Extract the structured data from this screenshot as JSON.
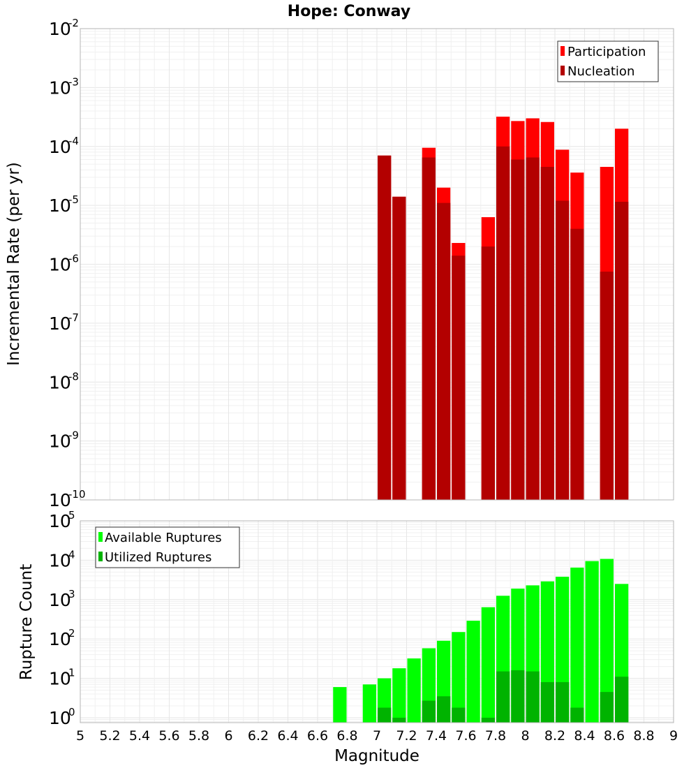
{
  "chart_data": [
    {
      "type": "bar",
      "title": "Hope: Conway",
      "ylabel": "Incremental Rate (per yr)",
      "xlabel": "",
      "yscale": "log",
      "ylim": [
        1e-10,
        0.01
      ],
      "xlim": [
        5,
        9
      ],
      "grid": true,
      "legend": "top-right",
      "y_ticks": [
        {
          "base": "10",
          "exp": "-2",
          "value": 0.01
        },
        {
          "base": "10",
          "exp": "-3",
          "value": 0.001
        },
        {
          "base": "10",
          "exp": "-4",
          "value": 0.0001
        },
        {
          "base": "10",
          "exp": "-5",
          "value": 1e-05
        },
        {
          "base": "10",
          "exp": "-6",
          "value": 1e-06
        },
        {
          "base": "10",
          "exp": "-7",
          "value": 1e-07
        },
        {
          "base": "10",
          "exp": "-8",
          "value": 1e-08
        },
        {
          "base": "10",
          "exp": "-9",
          "value": 1e-09
        },
        {
          "base": "10",
          "exp": "-10",
          "value": 1e-10
        }
      ],
      "series": [
        {
          "name": "Participation",
          "color": "#ff0000",
          "points": [
            {
              "x": 7.05,
              "y": 7e-05
            },
            {
              "x": 7.15,
              "y": 1.4e-05
            },
            {
              "x": 7.35,
              "y": 9.5e-05
            },
            {
              "x": 7.45,
              "y": 2e-05
            },
            {
              "x": 7.55,
              "y": 2.3e-06
            },
            {
              "x": 7.75,
              "y": 6.3e-06
            },
            {
              "x": 7.85,
              "y": 0.00032
            },
            {
              "x": 7.95,
              "y": 0.00027
            },
            {
              "x": 8.05,
              "y": 0.0003
            },
            {
              "x": 8.15,
              "y": 0.00026
            },
            {
              "x": 8.25,
              "y": 8.8e-05
            },
            {
              "x": 8.35,
              "y": 3.6e-05
            },
            {
              "x": 8.55,
              "y": 4.5e-05
            },
            {
              "x": 8.65,
              "y": 0.0002
            }
          ]
        },
        {
          "name": "Nucleation",
          "color": "#b30000",
          "points": [
            {
              "x": 7.05,
              "y": 7e-05
            },
            {
              "x": 7.15,
              "y": 1.4e-05
            },
            {
              "x": 7.35,
              "y": 6.5e-05
            },
            {
              "x": 7.45,
              "y": 1.1e-05
            },
            {
              "x": 7.55,
              "y": 1.4e-06
            },
            {
              "x": 7.75,
              "y": 2e-06
            },
            {
              "x": 7.85,
              "y": 0.0001
            },
            {
              "x": 7.95,
              "y": 6e-05
            },
            {
              "x": 8.05,
              "y": 6.5e-05
            },
            {
              "x": 8.15,
              "y": 4.5e-05
            },
            {
              "x": 8.25,
              "y": 1.2e-05
            },
            {
              "x": 8.35,
              "y": 4e-06
            },
            {
              "x": 8.55,
              "y": 7.5e-07
            },
            {
              "x": 8.65,
              "y": 1.15e-05
            }
          ]
        }
      ]
    },
    {
      "type": "bar",
      "title": "",
      "ylabel": "Rupture Count",
      "xlabel": "Magnitude",
      "yscale": "log",
      "ylim": [
        0.75,
        100000.0
      ],
      "xlim": [
        5,
        9
      ],
      "grid": true,
      "legend": "top-left",
      "y_ticks": [
        {
          "base": "10",
          "exp": "5",
          "value": 100000.0
        },
        {
          "base": "10",
          "exp": "4",
          "value": 10000.0
        },
        {
          "base": "10",
          "exp": "3",
          "value": 1000.0
        },
        {
          "base": "10",
          "exp": "2",
          "value": 100.0
        },
        {
          "base": "10",
          "exp": "1",
          "value": 10.0
        },
        {
          "base": "10",
          "exp": "0",
          "value": 1
        }
      ],
      "x_ticks": [
        "5",
        "5.2",
        "5.4",
        "5.6",
        "5.8",
        "6",
        "6.2",
        "6.4",
        "6.6",
        "6.8",
        "7",
        "7.2",
        "7.4",
        "7.6",
        "7.8",
        "8",
        "8.2",
        "8.4",
        "8.6",
        "8.8",
        "9"
      ],
      "series": [
        {
          "name": "Available Ruptures",
          "color": "#00ff00",
          "points": [
            {
              "x": 6.75,
              "y": 6
            },
            {
              "x": 6.95,
              "y": 7
            },
            {
              "x": 7.05,
              "y": 10
            },
            {
              "x": 7.15,
              "y": 18
            },
            {
              "x": 7.25,
              "y": 32
            },
            {
              "x": 7.35,
              "y": 58
            },
            {
              "x": 7.45,
              "y": 90
            },
            {
              "x": 7.55,
              "y": 150
            },
            {
              "x": 7.65,
              "y": 290
            },
            {
              "x": 7.75,
              "y": 640
            },
            {
              "x": 7.85,
              "y": 1250
            },
            {
              "x": 7.95,
              "y": 1900
            },
            {
              "x": 8.05,
              "y": 2300
            },
            {
              "x": 8.15,
              "y": 2900
            },
            {
              "x": 8.25,
              "y": 3800
            },
            {
              "x": 8.35,
              "y": 6500
            },
            {
              "x": 8.45,
              "y": 9500
            },
            {
              "x": 8.55,
              "y": 10800
            },
            {
              "x": 8.65,
              "y": 2500
            }
          ]
        },
        {
          "name": "Utilized Ruptures",
          "color": "#00b300",
          "points": [
            {
              "x": 7.05,
              "y": 1.8
            },
            {
              "x": 7.15,
              "y": 1.0
            },
            {
              "x": 7.35,
              "y": 2.7
            },
            {
              "x": 7.45,
              "y": 3.5
            },
            {
              "x": 7.55,
              "y": 1.8
            },
            {
              "x": 7.75,
              "y": 1.0
            },
            {
              "x": 7.85,
              "y": 15
            },
            {
              "x": 7.95,
              "y": 16
            },
            {
              "x": 8.05,
              "y": 15
            },
            {
              "x": 8.15,
              "y": 8
            },
            {
              "x": 8.25,
              "y": 8
            },
            {
              "x": 8.35,
              "y": 1.8
            },
            {
              "x": 8.55,
              "y": 4.5
            },
            {
              "x": 8.65,
              "y": 11
            }
          ]
        }
      ]
    }
  ]
}
